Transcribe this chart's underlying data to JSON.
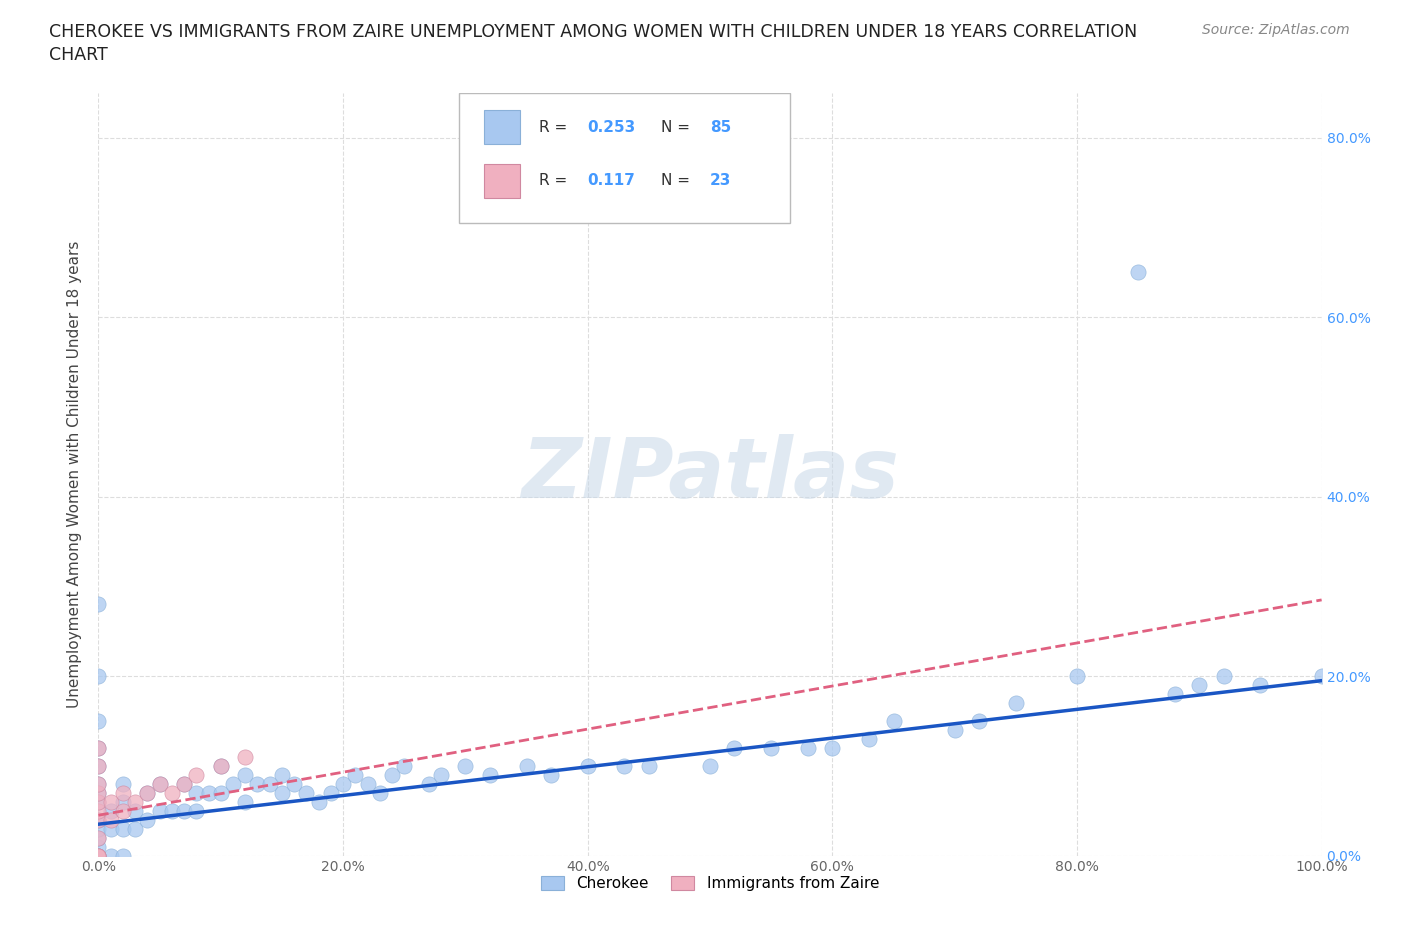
{
  "title_line1": "CHEROKEE VS IMMIGRANTS FROM ZAIRE UNEMPLOYMENT AMONG WOMEN WITH CHILDREN UNDER 18 YEARS CORRELATION",
  "title_line2": "CHART",
  "source_text": "Source: ZipAtlas.com",
  "ylabel": "Unemployment Among Women with Children Under 18 years",
  "xlim": [
    0,
    1.0
  ],
  "ylim": [
    0,
    0.85
  ],
  "xtick_vals": [
    0.0,
    0.2,
    0.4,
    0.6,
    0.8,
    1.0
  ],
  "xtick_labels": [
    "0.0%",
    "20.0%",
    "40.0%",
    "60.0%",
    "80.0%",
    "100.0%"
  ],
  "ytick_vals": [
    0.0,
    0.2,
    0.4,
    0.6,
    0.8
  ],
  "ytick_labels": [
    "0.0%",
    "20.0%",
    "40.0%",
    "60.0%",
    "80.0%"
  ],
  "watermark_text": "ZIPatlas",
  "cherokee_color": "#a8c8f0",
  "zaire_color": "#f0b0c0",
  "trend_cherokee_color": "#1a56c4",
  "trend_zaire_color": "#e06080",
  "cherokee_R": 0.253,
  "cherokee_N": 85,
  "zaire_R": 0.117,
  "zaire_N": 23,
  "legend_cherokee": "Cherokee",
  "legend_zaire": "Immigrants from Zaire",
  "right_tick_color": "#4499ff",
  "tick_color": "#666666",
  "grid_color": "#dddddd",
  "cherokee_x": [
    0.0,
    0.0,
    0.0,
    0.0,
    0.0,
    0.0,
    0.0,
    0.0,
    0.0,
    0.0,
    0.0,
    0.0,
    0.0,
    0.0,
    0.0,
    0.0,
    0.0,
    0.0,
    0.0,
    0.0,
    0.0,
    0.01,
    0.01,
    0.01,
    0.02,
    0.02,
    0.02,
    0.02,
    0.03,
    0.03,
    0.04,
    0.04,
    0.05,
    0.05,
    0.06,
    0.07,
    0.07,
    0.08,
    0.08,
    0.09,
    0.1,
    0.1,
    0.11,
    0.12,
    0.12,
    0.13,
    0.14,
    0.15,
    0.15,
    0.16,
    0.17,
    0.18,
    0.19,
    0.2,
    0.21,
    0.22,
    0.23,
    0.24,
    0.25,
    0.27,
    0.28,
    0.3,
    0.32,
    0.35,
    0.37,
    0.4,
    0.43,
    0.45,
    0.5,
    0.52,
    0.55,
    0.58,
    0.6,
    0.63,
    0.65,
    0.7,
    0.72,
    0.75,
    0.8,
    0.85,
    0.88,
    0.9,
    0.92,
    0.95,
    1.0
  ],
  "cherokee_y": [
    0.0,
    0.0,
    0.0,
    0.0,
    0.0,
    0.0,
    0.0,
    0.0,
    0.0,
    0.01,
    0.02,
    0.03,
    0.04,
    0.06,
    0.07,
    0.08,
    0.1,
    0.12,
    0.15,
    0.2,
    0.28,
    0.0,
    0.03,
    0.05,
    0.0,
    0.03,
    0.06,
    0.08,
    0.03,
    0.05,
    0.04,
    0.07,
    0.05,
    0.08,
    0.05,
    0.05,
    0.08,
    0.05,
    0.07,
    0.07,
    0.07,
    0.1,
    0.08,
    0.06,
    0.09,
    0.08,
    0.08,
    0.07,
    0.09,
    0.08,
    0.07,
    0.06,
    0.07,
    0.08,
    0.09,
    0.08,
    0.07,
    0.09,
    0.1,
    0.08,
    0.09,
    0.1,
    0.09,
    0.1,
    0.09,
    0.1,
    0.1,
    0.1,
    0.1,
    0.12,
    0.12,
    0.12,
    0.12,
    0.13,
    0.15,
    0.14,
    0.15,
    0.17,
    0.2,
    0.65,
    0.18,
    0.19,
    0.2,
    0.19,
    0.2
  ],
  "zaire_x": [
    0.0,
    0.0,
    0.0,
    0.0,
    0.0,
    0.0,
    0.0,
    0.0,
    0.0,
    0.0,
    0.0,
    0.01,
    0.01,
    0.02,
    0.02,
    0.03,
    0.04,
    0.05,
    0.06,
    0.07,
    0.08,
    0.1,
    0.12
  ],
  "zaire_y": [
    0.0,
    0.0,
    0.0,
    0.02,
    0.04,
    0.05,
    0.06,
    0.07,
    0.08,
    0.1,
    0.12,
    0.04,
    0.06,
    0.05,
    0.07,
    0.06,
    0.07,
    0.08,
    0.07,
    0.08,
    0.09,
    0.1,
    0.11
  ],
  "trend_cherokee_x0": 0.0,
  "trend_cherokee_y0": 0.035,
  "trend_cherokee_x1": 1.0,
  "trend_cherokee_y1": 0.195,
  "trend_zaire_x0": 0.0,
  "trend_zaire_y0": 0.045,
  "trend_zaire_x1": 1.0,
  "trend_zaire_y1": 0.285
}
